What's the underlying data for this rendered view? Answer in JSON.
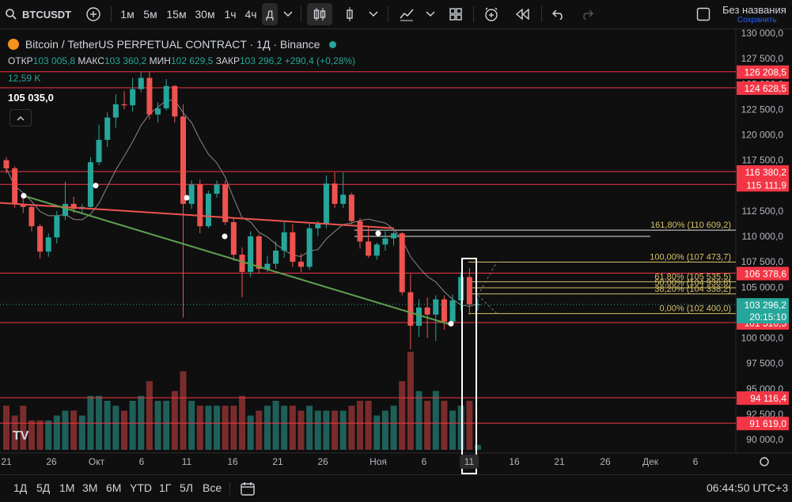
{
  "toolbar": {
    "symbol": "BTCUSDT",
    "intervals": [
      "1м",
      "5м",
      "15м",
      "30м",
      "1ч",
      "4ч",
      "Д"
    ],
    "active_interval": "Д",
    "title": "Без названия",
    "save": "Сохранить"
  },
  "legend": {
    "title": "Bitcoin / TetherUS PERPETUAL CONTRACT · 1Д · Binance",
    "open_label": "ОТКР",
    "open": "103 005,8",
    "high_label": "МАКС",
    "high": "103 360,2",
    "low_label": "МИН",
    "low": "102 629,5",
    "close_label": "ЗАКР",
    "close": "103 296,2",
    "change": "+290,4 (+0,28%)",
    "volume": "12,59 K",
    "price_marker": "105 035,0"
  },
  "colors": {
    "up": "#26a69a",
    "down": "#ef5350",
    "hline": "#f23645",
    "fib": "#d6c26a",
    "ma": "#8a8a8a"
  },
  "price_axis": {
    "ticks": [
      "130 000,0",
      "127 500,0",
      "125 000,0",
      "122 500,0",
      "120 000,0",
      "117 500,0",
      "115 000,0",
      "112 500,0",
      "110 000,0",
      "107 500,0",
      "105 000,0",
      "102 500,0",
      "100 000,0",
      "97 500,0",
      "95 000,0",
      "92 500,0",
      "90 000,0"
    ],
    "tick_values": [
      130000,
      127500,
      125000,
      122500,
      120000,
      117500,
      115000,
      112500,
      110000,
      107500,
      105000,
      102500,
      100000,
      97500,
      95000,
      92500,
      90000
    ],
    "red_labels": [
      "126 208,5",
      "124 628,5",
      "116 380,2",
      "115 111,9",
      "106 378,6",
      "101 516,5",
      "94 116,4",
      "91 619,0"
    ],
    "red_values": [
      126208.5,
      124628.5,
      116380.2,
      115111.9,
      106378.6,
      101516.5,
      94116.4,
      91619.0
    ],
    "last_price": "103 296,2",
    "last_value": 103296.2,
    "countdown": "20:15:10"
  },
  "fib": [
    {
      "label": "161,80% (110 609,2)",
      "value": 110609.2
    },
    {
      "label": "100,00% (107 473,7)",
      "value": 107473.7
    },
    {
      "label": "61,80% (105 535,5)",
      "value": 105535.5
    },
    {
      "label": "50,00% (104 936,8)",
      "value": 104936.8
    },
    {
      "label": "38,20% (104 338,2)",
      "value": 104338.2
    },
    {
      "label": "0,00% (102 400,0)",
      "value": 102400.0
    }
  ],
  "time_axis": [
    "21",
    "26",
    "Окт",
    "6",
    "11",
    "16",
    "21",
    "26",
    "Ноя",
    "6",
    "11",
    "16",
    "21",
    "26",
    "Дек",
    "6"
  ],
  "time_highlight": "11",
  "bottom": {
    "ranges": [
      "1Д",
      "5Д",
      "1М",
      "3М",
      "6М",
      "YTD",
      "1Г",
      "5Л",
      "Все"
    ],
    "clock": "06:44:50 UTC+3"
  },
  "chart_data": {
    "type": "candlestick",
    "candles": [
      [
        117500,
        117800,
        116200,
        116700
      ],
      [
        116700,
        116900,
        112800,
        113200
      ],
      [
        113200,
        113800,
        112300,
        112900
      ],
      [
        112900,
        113000,
        110500,
        111000
      ],
      [
        111000,
        111200,
        107800,
        108500
      ],
      [
        108500,
        110300,
        108000,
        109900
      ],
      [
        109900,
        112500,
        109300,
        112000
      ],
      [
        112000,
        115400,
        111600,
        113200
      ],
      [
        113200,
        113900,
        112300,
        112700
      ],
      [
        112700,
        113200,
        112200,
        112900
      ],
      [
        112900,
        117800,
        112800,
        117300
      ],
      [
        117300,
        121000,
        117000,
        119500
      ],
      [
        119500,
        122200,
        118800,
        121700
      ],
      [
        121700,
        124000,
        120700,
        123000
      ],
      [
        123000,
        124300,
        122500,
        122900
      ],
      [
        122900,
        125600,
        122300,
        124500
      ],
      [
        124500,
        126200,
        124200,
        125600
      ],
      [
        125600,
        126200,
        121500,
        122000
      ],
      [
        122000,
        123200,
        121200,
        122600
      ],
      [
        122600,
        125500,
        122400,
        124800
      ],
      [
        124800,
        124900,
        121200,
        121800
      ],
      [
        121800,
        123000,
        102000,
        113200
      ],
      [
        113200,
        115500,
        112700,
        115100
      ],
      [
        115100,
        115600,
        110300,
        111000
      ],
      [
        111000,
        114500,
        110800,
        114200
      ],
      [
        114200,
        115500,
        113800,
        115100
      ],
      [
        115100,
        115500,
        111100,
        111400
      ],
      [
        111400,
        111800,
        107600,
        108200
      ],
      [
        108200,
        108900,
        104000,
        106500
      ],
      [
        106500,
        110500,
        106000,
        110000
      ],
      [
        110000,
        110200,
        106400,
        106800
      ],
      [
        106800,
        108100,
        106500,
        107300
      ],
      [
        107300,
        109500,
        106800,
        108600
      ],
      [
        108600,
        111500,
        107900,
        110400
      ],
      [
        110400,
        111200,
        107000,
        107500
      ],
      [
        107500,
        108300,
        106500,
        107000
      ],
      [
        107000,
        111300,
        106700,
        110800
      ],
      [
        110800,
        111500,
        110000,
        111200
      ],
      [
        111200,
        116000,
        110800,
        115200
      ],
      [
        115200,
        116300,
        112800,
        113200
      ],
      [
        113200,
        116300,
        112800,
        114100
      ],
      [
        114100,
        114300,
        111200,
        111500
      ],
      [
        111500,
        111800,
        108800,
        109500
      ],
      [
        109500,
        111000,
        107900,
        108100
      ],
      [
        108100,
        109400,
        107700,
        109200
      ],
      [
        109200,
        110500,
        108600,
        109800
      ],
      [
        109800,
        110500,
        109100,
        110300
      ],
      [
        110300,
        110400,
        104200,
        104500
      ],
      [
        104500,
        106300,
        98900,
        101200
      ],
      [
        101200,
        103800,
        100100,
        103000
      ],
      [
        103000,
        104000,
        100000,
        102300
      ],
      [
        102300,
        104200,
        99700,
        103800
      ],
      [
        103800,
        104200,
        100800,
        101600
      ],
      [
        101600,
        104300,
        101300,
        103700
      ],
      [
        103700,
        106500,
        102700,
        106000
      ],
      [
        106000,
        106900,
        102300,
        103300
      ],
      [
        103300,
        103900,
        102700,
        103300
      ]
    ],
    "volumes": [
      9,
      7,
      9,
      6,
      6,
      6,
      7,
      8,
      8,
      7,
      11,
      11,
      10,
      9,
      8,
      10,
      11,
      14,
      10,
      10,
      12,
      16,
      10,
      9,
      9,
      9,
      9,
      9,
      11,
      7,
      8,
      9,
      10,
      9,
      9,
      8,
      9,
      8,
      8,
      8,
      8,
      9,
      10,
      10,
      7,
      8,
      9,
      14,
      20,
      12,
      10,
      12,
      10,
      8,
      9,
      10,
      1
    ]
  }
}
